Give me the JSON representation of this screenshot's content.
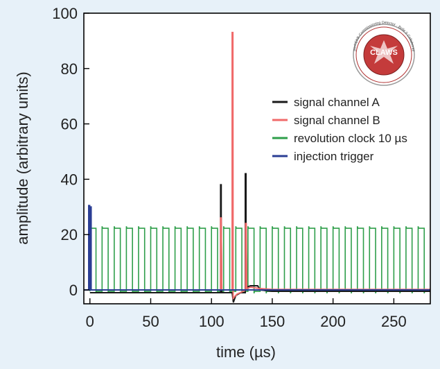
{
  "chart_data": {
    "type": "line",
    "title": "",
    "xlabel": "time (µs)",
    "ylabel": "amplitude (arbitrary units)",
    "xlim": [
      -5,
      280
    ],
    "ylim": [
      -5,
      100
    ],
    "x_ticks": [
      0,
      50,
      100,
      150,
      200,
      250
    ],
    "y_ticks": [
      0,
      20,
      40,
      60,
      80,
      100
    ],
    "grid": false,
    "legend_position": "right",
    "series": [
      {
        "name": "signal channel A",
        "color": "#1a1a1a",
        "points": [
          [
            0,
            -1
          ],
          [
            105,
            -1
          ],
          [
            107.5,
            -1
          ],
          [
            107.5,
            38
          ],
          [
            108,
            38
          ],
          [
            108,
            25
          ],
          [
            108.5,
            -1
          ],
          [
            117,
            -1
          ],
          [
            118,
            -4.5
          ],
          [
            120,
            -2
          ],
          [
            124,
            -1
          ],
          [
            127.8,
            -1
          ],
          [
            127.8,
            42
          ],
          [
            128.4,
            42
          ],
          [
            128.4,
            24
          ],
          [
            129,
            1
          ],
          [
            132,
            1.5
          ],
          [
            138,
            1.5
          ],
          [
            140,
            0
          ],
          [
            150,
            -0.5
          ],
          [
            280,
            -0.5
          ]
        ]
      },
      {
        "name": "signal channel B",
        "color": "#f06a6a",
        "points": [
          [
            0,
            0
          ],
          [
            105,
            0
          ],
          [
            107.5,
            0
          ],
          [
            107.5,
            26
          ],
          [
            108,
            26
          ],
          [
            108.5,
            0
          ],
          [
            117,
            0
          ],
          [
            117,
            93
          ],
          [
            117.6,
            93
          ],
          [
            117.8,
            -3
          ],
          [
            121,
            -1.5
          ],
          [
            126,
            -0.5
          ],
          [
            128,
            0
          ],
          [
            128,
            24
          ],
          [
            128.6,
            24
          ],
          [
            129,
            0.5
          ],
          [
            132,
            1
          ],
          [
            140,
            0.5
          ],
          [
            150,
            0.2
          ],
          [
            280,
            0.2
          ]
        ]
      },
      {
        "name": "revolution clock 10 µs",
        "color": "#2e9e4a",
        "clock": {
          "period": 10,
          "start": 0,
          "end": 280,
          "high": 22.3,
          "low": -0.5,
          "overshoot": 23,
          "undershoot": -1.2
        }
      },
      {
        "name": "injection trigger",
        "color": "#2a3d94",
        "points": [
          [
            -5,
            0
          ],
          [
            -1,
            0
          ],
          [
            -1,
            30.5
          ],
          [
            -0.2,
            30.5
          ],
          [
            -0.2,
            0
          ],
          [
            0.4,
            0
          ],
          [
            0.4,
            30
          ],
          [
            1,
            30
          ],
          [
            1,
            0
          ],
          [
            280,
            0
          ]
        ]
      }
    ],
    "logo": {
      "name": "CLAWS",
      "circle_text": "SuperKEKB Commissioning Detector · Belle II Collaboration"
    }
  }
}
